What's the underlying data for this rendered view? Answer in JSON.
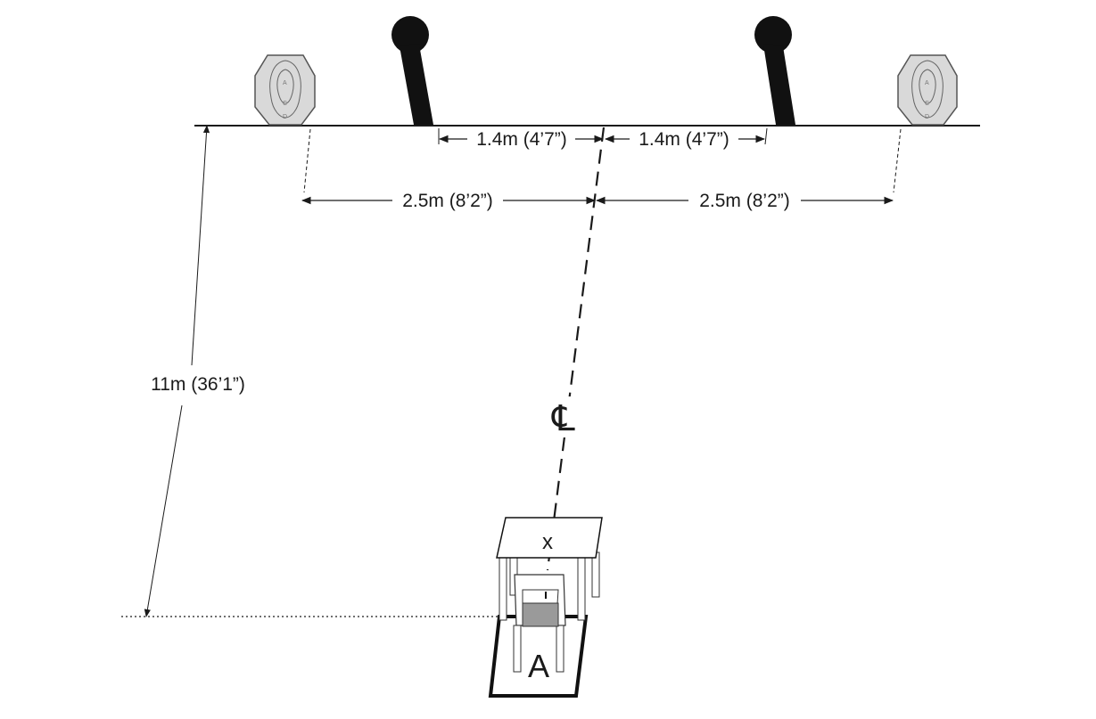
{
  "dimensions": {
    "popper_spacing_left": "1.4m (4’7”)",
    "popper_spacing_right": "1.4m (4’7”)",
    "target_spacing_left": "2.5m (8’2”)",
    "target_spacing_right": "2.5m (8’2”)",
    "range_distance": "11m (36’1”)"
  },
  "centerline_symbol": "℄",
  "table_mark": "x",
  "shooting_box_label": "A",
  "target_zone_letters": [
    "A",
    "C",
    "D"
  ],
  "colors": {
    "line": "#1a1a1a",
    "popper": "#111111",
    "target_fill": "#d9d9d9",
    "target_stroke": "#555555",
    "chair_seat": "#9a9a9a"
  }
}
